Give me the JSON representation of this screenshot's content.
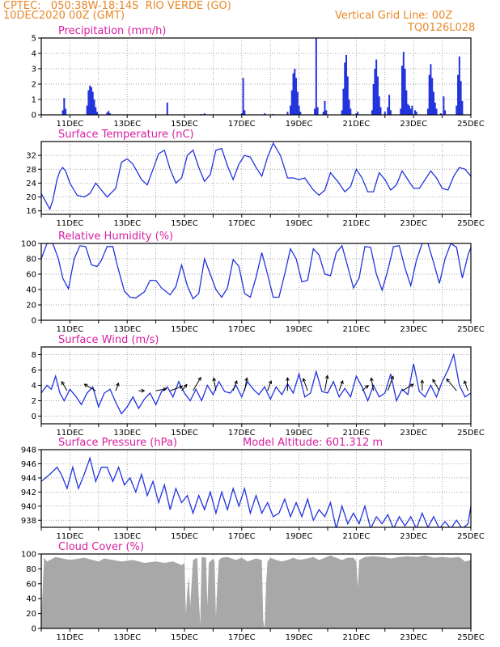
{
  "header": {
    "org_loc": "CPTEC:   050:38W-18:14S  RIO VERDE (GO)",
    "run_date": "10DEC2020 00Z (GMT)",
    "grid_line": "Vertical Grid Line: 00Z",
    "code": "TQ0126L028"
  },
  "colors": {
    "header": "#e8892a",
    "title": "#d81fa0",
    "series": "#2233dd",
    "cloud": "#a8a8a8",
    "wind_arrow": "#000000"
  },
  "date_labels": [
    "11DEC",
    "13DEC",
    "15DEC",
    "17DEC",
    "19DEC",
    "21DEC",
    "23DEC",
    "25DEC"
  ],
  "chart_data": [
    {
      "type": "bar",
      "title": "Precipitation (mm/h)",
      "x_unit": "days since 10DEC2020 00Z",
      "ylim": [
        0,
        5
      ],
      "yticks": [
        0,
        1,
        2,
        3,
        4,
        5
      ],
      "bars": [
        [
          0.75,
          0.3
        ],
        [
          0.8,
          1.1
        ],
        [
          0.85,
          0.4
        ],
        [
          1.6,
          0.6
        ],
        [
          1.65,
          1.6
        ],
        [
          1.7,
          1.9
        ],
        [
          1.75,
          1.8
        ],
        [
          1.8,
          1.5
        ],
        [
          1.85,
          1.0
        ],
        [
          1.9,
          0.5
        ],
        [
          1.95,
          0.2
        ],
        [
          2.3,
          0.15
        ],
        [
          2.35,
          0.25
        ],
        [
          2.4,
          0.1
        ],
        [
          4.4,
          0.8
        ],
        [
          5.6,
          0.05
        ],
        [
          5.7,
          0.1
        ],
        [
          7.0,
          0.1
        ],
        [
          7.05,
          2.4
        ],
        [
          7.1,
          0.3
        ],
        [
          7.8,
          0.1
        ],
        [
          8.1,
          0.05
        ],
        [
          8.6,
          0.2
        ],
        [
          8.7,
          0.6
        ],
        [
          8.75,
          1.6
        ],
        [
          8.8,
          2.7
        ],
        [
          8.85,
          3.0
        ],
        [
          8.9,
          2.4
        ],
        [
          8.95,
          1.5
        ],
        [
          9.0,
          0.6
        ],
        [
          9.05,
          0.2
        ],
        [
          9.55,
          0.4
        ],
        [
          9.6,
          5.0
        ],
        [
          9.65,
          0.5
        ],
        [
          9.85,
          0.2
        ],
        [
          9.9,
          0.9
        ],
        [
          9.95,
          0.3
        ],
        [
          10.5,
          0.3
        ],
        [
          10.55,
          1.7
        ],
        [
          10.6,
          3.4
        ],
        [
          10.65,
          3.9
        ],
        [
          10.7,
          2.5
        ],
        [
          10.75,
          1.0
        ],
        [
          10.8,
          0.4
        ],
        [
          11.0,
          0.1
        ],
        [
          11.05,
          0.2
        ],
        [
          11.55,
          0.3
        ],
        [
          11.6,
          2.0
        ],
        [
          11.65,
          3.0
        ],
        [
          11.7,
          3.6
        ],
        [
          11.75,
          2.5
        ],
        [
          11.8,
          1.2
        ],
        [
          11.85,
          0.5
        ],
        [
          12.0,
          0.2
        ],
        [
          12.1,
          0.5
        ],
        [
          12.15,
          1.3
        ],
        [
          12.2,
          0.3
        ],
        [
          12.55,
          0.4
        ],
        [
          12.6,
          3.2
        ],
        [
          12.65,
          4.1
        ],
        [
          12.7,
          3.0
        ],
        [
          12.75,
          1.6
        ],
        [
          12.8,
          0.7
        ],
        [
          12.85,
          0.6
        ],
        [
          12.9,
          0.4
        ],
        [
          12.95,
          0.6
        ],
        [
          13.05,
          0.3
        ],
        [
          13.1,
          0.2
        ],
        [
          13.5,
          0.4
        ],
        [
          13.55,
          2.6
        ],
        [
          13.6,
          3.3
        ],
        [
          13.65,
          2.4
        ],
        [
          13.7,
          1.5
        ],
        [
          13.75,
          0.8
        ],
        [
          13.8,
          0.4
        ],
        [
          13.95,
          0.1
        ],
        [
          14.05,
          1.2
        ],
        [
          14.1,
          0.3
        ],
        [
          14.5,
          0.6
        ],
        [
          14.55,
          2.6
        ],
        [
          14.6,
          3.8
        ],
        [
          14.65,
          2.2
        ],
        [
          14.7,
          0.9
        ]
      ]
    },
    {
      "type": "line",
      "title": "Surface Temperature (nC)",
      "x_unit": "days since 10DEC2020 00Z",
      "ylim": [
        15,
        36
      ],
      "yticks": [
        16,
        20,
        24,
        28,
        32
      ],
      "x": [
        0,
        0.3,
        0.4,
        0.55,
        0.65,
        0.75,
        0.85,
        1.0,
        1.25,
        1.5,
        1.7,
        1.9,
        2.1,
        2.3,
        2.6,
        2.8,
        3.0,
        3.2,
        3.5,
        3.7,
        3.9,
        4.1,
        4.3,
        4.5,
        4.7,
        4.9,
        5.1,
        5.3,
        5.5,
        5.7,
        5.9,
        6.1,
        6.3,
        6.5,
        6.7,
        6.9,
        7.1,
        7.3,
        7.5,
        7.7,
        7.9,
        8.1,
        8.35,
        8.6,
        8.8,
        9.0,
        9.2,
        9.5,
        9.7,
        9.9,
        10.1,
        10.35,
        10.6,
        10.8,
        11.0,
        11.2,
        11.4,
        11.6,
        11.8,
        12.0,
        12.2,
        12.4,
        12.6,
        12.8,
        13.0,
        13.2,
        13.4,
        13.6,
        13.8,
        14.0,
        14.2,
        14.4,
        14.6,
        14.8,
        15.0
      ],
      "y": [
        21,
        16.5,
        19,
        25,
        27.5,
        28.5,
        27.5,
        24,
        20.5,
        20,
        21,
        24,
        22,
        20,
        22.5,
        30,
        31,
        29.5,
        25,
        23.5,
        28,
        32.5,
        33.5,
        28,
        24,
        25.5,
        32,
        33.5,
        28.5,
        24.5,
        26.5,
        33.5,
        34,
        29,
        25,
        29.5,
        32,
        31.5,
        28.5,
        26,
        31.5,
        35.5,
        32,
        25.5,
        25.5,
        25,
        25.5,
        22,
        20.5,
        22,
        27,
        24.5,
        21.5,
        23,
        28,
        25.5,
        21.5,
        21.5,
        27,
        25,
        22,
        23.5,
        27.5,
        25,
        22.5,
        22.5,
        25,
        27.5,
        25.5,
        22.5,
        22,
        26,
        28.5,
        28,
        26
      ]
    },
    {
      "type": "line",
      "title": "Relative Humidity (%)",
      "x_unit": "days since 10DEC2020 00Z",
      "ylim": [
        0,
        100
      ],
      "yticks": [
        0,
        20,
        40,
        60,
        80,
        100
      ],
      "x": [
        0,
        0.2,
        0.4,
        0.6,
        0.75,
        0.95,
        1.15,
        1.35,
        1.55,
        1.75,
        1.95,
        2.1,
        2.3,
        2.5,
        2.65,
        2.9,
        3.1,
        3.3,
        3.6,
        3.8,
        4.0,
        4.2,
        4.5,
        4.7,
        4.9,
        5.1,
        5.3,
        5.5,
        5.7,
        5.9,
        6.1,
        6.3,
        6.5,
        6.7,
        6.9,
        7.1,
        7.3,
        7.5,
        7.7,
        7.9,
        8.1,
        8.3,
        8.5,
        8.7,
        8.9,
        9.1,
        9.3,
        9.5,
        9.7,
        9.9,
        10.1,
        10.3,
        10.5,
        10.7,
        10.9,
        11.1,
        11.3,
        11.5,
        11.7,
        11.9,
        12.1,
        12.3,
        12.5,
        12.7,
        12.9,
        13.1,
        13.3,
        13.5,
        13.7,
        13.9,
        14.1,
        14.3,
        14.5,
        14.7,
        14.9,
        15.0
      ],
      "y": [
        80,
        100,
        100,
        80,
        55,
        41,
        80,
        97,
        96,
        72,
        70,
        78,
        96,
        96,
        72,
        38,
        30,
        29,
        37,
        52,
        52,
        42,
        33,
        44,
        72,
        45,
        28,
        35,
        80,
        60,
        40,
        30,
        42,
        79,
        70,
        35,
        30,
        56,
        88,
        60,
        30,
        30,
        60,
        93,
        80,
        50,
        52,
        93,
        85,
        60,
        58,
        88,
        97,
        70,
        42,
        55,
        96,
        95,
        60,
        39,
        65,
        96,
        97,
        68,
        45,
        78,
        100,
        100,
        75,
        48,
        80,
        100,
        95,
        55,
        85,
        95
      ]
    },
    {
      "type": "line",
      "title": "Surface Wind (m/s)",
      "x_unit": "days since 10DEC2020 00Z",
      "ylim": [
        -1,
        9
      ],
      "yticks": [
        0,
        2,
        4,
        6,
        8
      ],
      "x": [
        0,
        0.2,
        0.35,
        0.5,
        0.65,
        0.8,
        1.0,
        1.2,
        1.4,
        1.6,
        1.8,
        2.0,
        2.2,
        2.4,
        2.6,
        2.8,
        3.0,
        3.2,
        3.4,
        3.6,
        3.8,
        4.0,
        4.2,
        4.4,
        4.6,
        4.8,
        5.0,
        5.2,
        5.4,
        5.6,
        5.8,
        6.0,
        6.2,
        6.4,
        6.6,
        6.8,
        7.0,
        7.2,
        7.4,
        7.6,
        7.8,
        8.0,
        8.2,
        8.4,
        8.6,
        8.8,
        9.0,
        9.2,
        9.4,
        9.6,
        9.8,
        10.0,
        10.2,
        10.4,
        10.6,
        10.8,
        11.0,
        11.2,
        11.4,
        11.6,
        11.8,
        12.0,
        12.2,
        12.4,
        12.6,
        12.8,
        13.0,
        13.2,
        13.4,
        13.6,
        13.8,
        14.0,
        14.2,
        14.4,
        14.6,
        14.8,
        15.0
      ],
      "y": [
        3,
        4,
        3.5,
        5.2,
        3,
        2,
        3.5,
        2.6,
        1.5,
        3,
        3.8,
        1.2,
        3,
        3.5,
        1.8,
        0.3,
        1.2,
        2.5,
        1,
        2.2,
        3,
        1.5,
        3.2,
        3.8,
        2.5,
        4.5,
        3,
        2,
        3.5,
        2,
        4,
        2.8,
        4.5,
        3.2,
        3,
        4,
        2.5,
        4.5,
        3.5,
        2.8,
        3.8,
        2.2,
        3.8,
        2.8,
        4.2,
        3,
        5.5,
        2.5,
        3,
        5.8,
        3.2,
        3,
        4.5,
        2.5,
        3.6,
        2.5,
        5.2,
        3.8,
        2,
        4,
        2.5,
        3,
        5.5,
        2,
        3.5,
        2.8,
        6.8,
        3.2,
        2.5,
        4,
        2.5,
        4.5,
        6,
        8,
        4,
        2.5,
        3
      ]
    },
    {
      "type": "line",
      "title": "Surface Pressure (hPa)",
      "annotation": "Model Altitude: 601.312 m",
      "x_unit": "days since 10DEC2020 00Z",
      "ylim": [
        937,
        948
      ],
      "yticks": [
        938,
        940,
        942,
        944,
        946,
        948
      ],
      "x": [
        0,
        0.3,
        0.55,
        0.7,
        0.9,
        1.1,
        1.3,
        1.5,
        1.7,
        1.9,
        2.1,
        2.3,
        2.5,
        2.7,
        2.9,
        3.1,
        3.3,
        3.5,
        3.7,
        3.9,
        4.1,
        4.3,
        4.5,
        4.7,
        4.9,
        5.1,
        5.3,
        5.5,
        5.7,
        5.9,
        6.1,
        6.3,
        6.5,
        6.7,
        6.9,
        7.1,
        7.3,
        7.5,
        7.7,
        7.9,
        8.1,
        8.3,
        8.5,
        8.7,
        8.9,
        9.1,
        9.3,
        9.5,
        9.7,
        9.9,
        10.1,
        10.3,
        10.5,
        10.7,
        10.9,
        11.1,
        11.3,
        11.5,
        11.7,
        11.9,
        12.1,
        12.3,
        12.5,
        12.7,
        12.9,
        13.1,
        13.3,
        13.5,
        13.7,
        13.9,
        14.1,
        14.3,
        14.5,
        14.7,
        14.9,
        15.0
      ],
      "y": [
        943.5,
        944.5,
        945.5,
        944.5,
        942.5,
        945.5,
        942.5,
        944.5,
        946.8,
        943.5,
        945.5,
        945.5,
        943.5,
        945.5,
        943,
        944,
        942,
        944.5,
        941.5,
        943.5,
        940.5,
        943,
        939.5,
        942.5,
        940.5,
        941.5,
        939,
        941.5,
        939.5,
        942,
        939,
        942,
        939.5,
        942.5,
        940,
        942.5,
        939,
        941.5,
        939,
        940.5,
        938.5,
        939,
        941,
        938.5,
        940.5,
        938.5,
        941,
        938,
        939.5,
        938.5,
        940.5,
        936.8,
        940,
        937.5,
        939,
        937.5,
        940,
        936.8,
        938.5,
        937.5,
        938.8,
        936.8,
        938.5,
        937.2,
        938.5,
        936.8,
        939,
        937,
        938.5,
        936.8,
        937.8,
        936.8,
        938,
        936.8,
        937.5,
        940
      ]
    },
    {
      "type": "area",
      "title": "Cloud Cover (%)",
      "x_unit": "days since 10DEC2020 00Z",
      "ylim": [
        0,
        100
      ],
      "yticks": [
        0,
        20,
        40,
        60,
        80,
        100
      ],
      "x": [
        0,
        0.1,
        0.2,
        0.5,
        1.0,
        1.5,
        2.0,
        2.2,
        2.8,
        3.2,
        3.6,
        4.0,
        4.3,
        4.6,
        4.9,
        5.0,
        5.05,
        5.1,
        5.15,
        5.2,
        5.3,
        5.45,
        5.5,
        5.55,
        5.6,
        5.75,
        5.8,
        5.85,
        5.9,
        6.0,
        6.05,
        6.1,
        6.15,
        6.2,
        6.3,
        6.5,
        6.8,
        7.0,
        7.2,
        7.5,
        7.7,
        7.75,
        7.8,
        7.85,
        7.9,
        8.0,
        8.2,
        8.4,
        8.6,
        8.8,
        9.0,
        9.3,
        9.5,
        9.7,
        9.9,
        10.1,
        10.3,
        10.5,
        10.7,
        10.9,
        11.0,
        11.05,
        11.1,
        11.3,
        11.6,
        11.9,
        12.2,
        12.5,
        12.8,
        13.1,
        13.4,
        13.7,
        14.0,
        14.3,
        14.6,
        14.8,
        15.0
      ],
      "y": [
        10,
        95,
        90,
        96,
        92,
        95,
        90,
        94,
        90,
        92,
        88,
        90,
        88,
        90,
        85,
        88,
        20,
        50,
        70,
        30,
        92,
        95,
        40,
        5,
        96,
        95,
        30,
        88,
        90,
        94,
        90,
        15,
        60,
        92,
        95,
        96,
        92,
        95,
        90,
        94,
        92,
        10,
        0,
        60,
        90,
        95,
        92,
        90,
        92,
        95,
        92,
        94,
        96,
        92,
        95,
        98,
        95,
        92,
        95,
        95,
        90,
        55,
        92,
        96,
        97,
        96,
        94,
        96,
        97,
        96,
        98,
        95,
        96,
        95,
        96,
        90,
        92
      ]
    }
  ],
  "wind_arrows": [
    {
      "x": 0.9,
      "dir": 150,
      "speed": 3
    },
    {
      "x": 1.9,
      "dir": 120,
      "speed": 4
    },
    {
      "x": 2.6,
      "dir": 200,
      "speed": 2
    },
    {
      "x": 3.4,
      "dir": 270,
      "speed": 1
    },
    {
      "x": 4.0,
      "dir": 260,
      "speed": 3
    },
    {
      "x": 4.5,
      "dir": 250,
      "speed": 4
    },
    {
      "x": 4.9,
      "dir": 220,
      "speed": 2
    },
    {
      "x": 5.3,
      "dir": 210,
      "speed": 5
    },
    {
      "x": 6.1,
      "dir": 170,
      "speed": 4
    },
    {
      "x": 6.7,
      "dir": 200,
      "speed": 3
    },
    {
      "x": 7.1,
      "dir": 190,
      "speed": 4
    },
    {
      "x": 7.9,
      "dir": 200,
      "speed": 3
    },
    {
      "x": 8.6,
      "dir": 180,
      "speed": 4
    },
    {
      "x": 9.3,
      "dir": 160,
      "speed": 4
    },
    {
      "x": 9.9,
      "dir": 190,
      "speed": 5
    },
    {
      "x": 10.4,
      "dir": 200,
      "speed": 3
    },
    {
      "x": 11.2,
      "dir": 230,
      "speed": 2
    },
    {
      "x": 11.6,
      "dir": 170,
      "speed": 4
    },
    {
      "x": 12.1,
      "dir": 200,
      "speed": 5
    },
    {
      "x": 12.6,
      "dir": 240,
      "speed": 4
    },
    {
      "x": 13.3,
      "dir": 180,
      "speed": 3
    },
    {
      "x": 13.9,
      "dir": 150,
      "speed": 4
    },
    {
      "x": 14.5,
      "dir": 140,
      "speed": 5
    },
    {
      "x": 14.9,
      "dir": 160,
      "speed": 3
    }
  ]
}
